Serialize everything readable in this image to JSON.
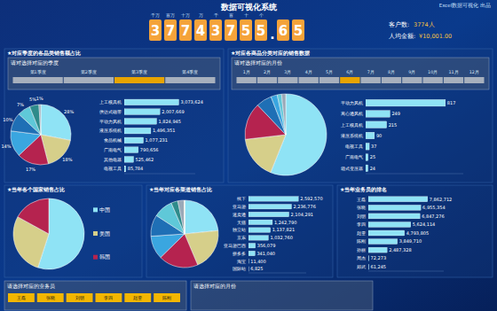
{
  "header": {
    "title": "数据可视化系统",
    "brand": "Excel数据可视化 出品",
    "counter": {
      "units": [
        "千万",
        "百万",
        "十万",
        "万",
        "千",
        "百",
        "十",
        "个"
      ],
      "total": 37743755.65
    },
    "customers": {
      "label": "客户数:",
      "value": "3774人"
    },
    "per_capita": {
      "label": "人均金额:",
      "value": "¥10,001.00"
    }
  },
  "panels": [
    {
      "title": "★对应季度的各品类销售额占比",
      "slicer": {
        "label": "请对选择对应的季度",
        "items": [
          "第1季度",
          "第2季度",
          "第3季度",
          "第4季度"
        ]
      }
    },
    {
      "title": "★对应各商品分类对应的销售数据",
      "slicer": {
        "label": "请对选择对应的月份",
        "items": [
          "1月",
          "2月",
          "3月",
          "4月",
          "5月",
          "6月",
          "7月",
          "8月",
          "9月",
          "10月",
          "11月",
          "12月"
        ]
      }
    },
    {
      "title": "★当年各个国家销售占比"
    },
    {
      "title": "★当年对应各渠道销售占比"
    },
    {
      "title": "★当年业务员的排名"
    }
  ],
  "bottom": [
    {
      "label": "请选择对应的业务员",
      "items": [
        "王磊",
        "张晓",
        "刘明",
        "李四",
        "赵雯",
        "陈刚"
      ]
    },
    {
      "label": "请选择对应的月份"
    }
  ],
  "chart_data": [
    {
      "type": "pie",
      "categories": [
        "上工模具机",
        "供达式磁带",
        "平动力风机",
        "液压系统机",
        "食品机械",
        "广南电气",
        "其他电器",
        "电视工具"
      ],
      "values": [
        28,
        18,
        17,
        14,
        10,
        7,
        5,
        1
      ],
      "value_labels": [
        "28%",
        "18%",
        "17%",
        "14%",
        "10%",
        "7%",
        "5%",
        "1%"
      ],
      "colors": [
        "#8fe3f5",
        "#d6cf8a",
        "#b5234f",
        "#3aa6e0",
        "#1f6fb5",
        "#5fc8d8",
        "#2e8b8b",
        "#9aa9b8"
      ],
      "data_labels": true
    },
    {
      "type": "bar",
      "orientation": "horizontal",
      "categories": [
        "上工模具机",
        "供达式磁带",
        "平动力风机",
        "液压系统机",
        "食品机械",
        "广南电气",
        "其他电器",
        "电视工具"
      ],
      "values": [
        3073624,
        2007669,
        1824945,
        1496351,
        1077231,
        790656,
        525462,
        85784
      ],
      "value_labels": [
        "3,073,624",
        "2,007,669",
        "1,824,945",
        "1,496,351",
        "1,077,231",
        "790,656",
        "525,462",
        "85,784"
      ],
      "xlim": [
        0,
        4000000
      ],
      "color": "#8fe3f5",
      "data_labels": true,
      "tick_labels": "y"
    },
    {
      "type": "pie",
      "categories": [
        "平动力风机",
        "离心通风机",
        "上工模具机",
        "液压系统机",
        "电视工具",
        "广南电气",
        "箱式变压器"
      ],
      "values": [
        817,
        249,
        215,
        90,
        37,
        25,
        24
      ],
      "colors": [
        "#8fe3f5",
        "#d6cf8a",
        "#b5234f",
        "#1f6fb5",
        "#3aa6e0",
        "#5fc8d8",
        "#9aa9b8"
      ],
      "data_labels": false
    },
    {
      "type": "bar",
      "orientation": "horizontal",
      "categories": [
        "平动力风机",
        "离心通风机",
        "上工模具机",
        "液压系统机",
        "电视工具",
        "广南电气",
        "箱式变压器"
      ],
      "values": [
        817,
        249,
        215,
        90,
        37,
        25,
        24
      ],
      "xlim": [
        0,
        1000
      ],
      "color": "#8fe3f5",
      "data_labels": true,
      "tick_labels": "y"
    },
    {
      "type": "pie",
      "categories": [
        "中国",
        "美国",
        "韩国"
      ],
      "values": [
        55,
        28,
        17
      ],
      "colors": [
        "#8fe3f5",
        "#d6cf8a",
        "#b5234f"
      ],
      "data_labels": false,
      "legend": "right"
    },
    {
      "type": "pie",
      "categories": [
        "线下",
        "亚马逊",
        "速卖通",
        "天猫",
        "独立站",
        "京东",
        "亚马逊巴西",
        "拼多多",
        "淘宝",
        "国际站"
      ],
      "values": [
        2592570,
        2236776,
        2104291,
        1242790,
        1137821,
        1032760,
        356079,
        341040,
        11400,
        6825
      ],
      "colors": [
        "#8fe3f5",
        "#d6cf8a",
        "#b5234f",
        "#3aa6e0",
        "#1f6fb5",
        "#5fc8d8",
        "#2e8b8b",
        "#9aa9b8",
        "#e8e8e8",
        "#f2b600"
      ],
      "data_labels": false
    },
    {
      "type": "bar",
      "orientation": "horizontal",
      "categories": [
        "线下",
        "亚马逊",
        "速卖通",
        "天猫",
        "独立站",
        "京东",
        "亚马逊巴西",
        "拼多多",
        "淘宝",
        "国际站"
      ],
      "values": [
        2592570,
        2236776,
        2104291,
        1242790,
        1137821,
        1032760,
        356079,
        341040,
        11400,
        6825
      ],
      "value_labels": [
        "2,592,570",
        "2,236,776",
        "2,104,291",
        "1,242,790",
        "1,137,821",
        "1,032,760",
        "356,079",
        "341,040",
        "11,400",
        "6,825"
      ],
      "xlim": [
        0,
        3000000
      ],
      "color": "#8fe3f5",
      "data_labels": true,
      "tick_labels": "y"
    },
    {
      "type": "bar",
      "orientation": "horizontal",
      "categories": [
        "王磊",
        "张晓",
        "刘明",
        "李四",
        "赵雯",
        "陈刚",
        "孙丽",
        "周杰",
        "郑武"
      ],
      "values": [
        7862712,
        6955354,
        6847276,
        5624114,
        4793805,
        3849710,
        2487328,
        72273,
        61245
      ],
      "value_labels": [
        "7,862,712",
        "6,955,354",
        "6,847,276",
        "5,624,114",
        "4,793,805",
        "3,849,710",
        "2,487,328",
        "72,273",
        "61,245"
      ],
      "xlim": [
        0,
        10000000
      ],
      "color": "#8fe3f5",
      "data_labels": true,
      "tick_labels": "y"
    }
  ]
}
